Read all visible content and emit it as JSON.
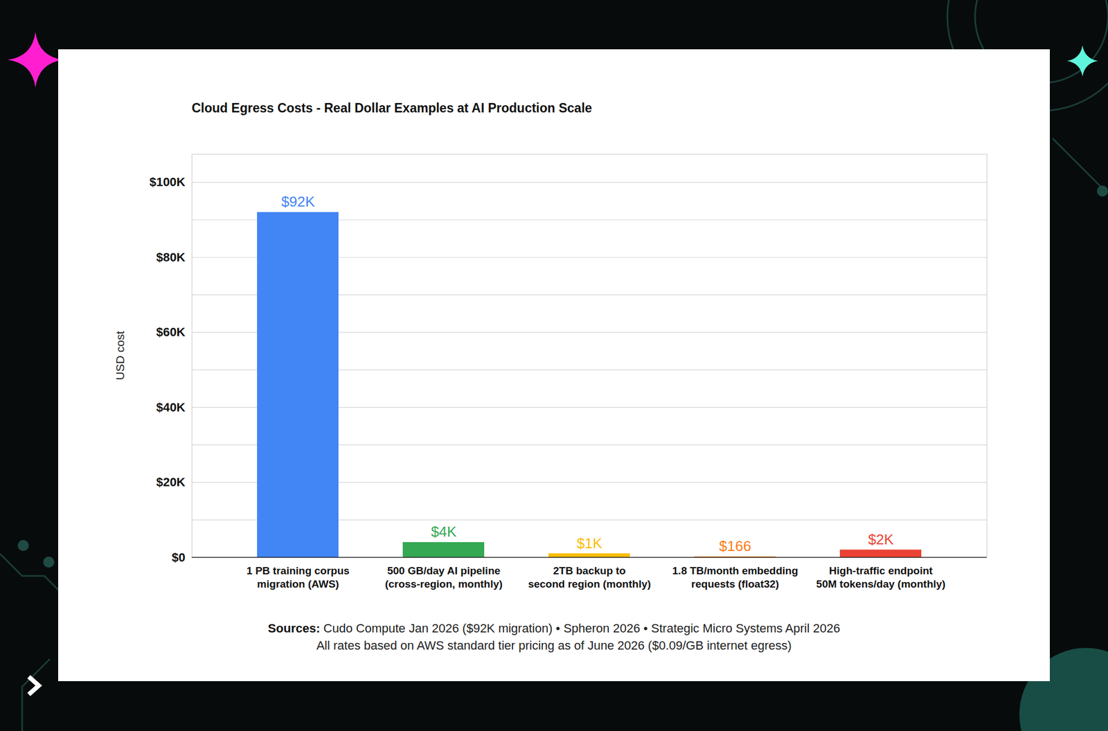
{
  "chart_data": {
    "type": "bar",
    "title": "Cloud Egress Costs - Real Dollar Examples at AI Production Scale",
    "y_label": "USD cost",
    "categories": [
      "1 PB training corpus\nmigration (AWS)",
      "500 GB/day AI pipeline\n(cross-region, monthly)",
      "2TB backup to\nsecond region (monthly)",
      "1.8 TB/month embedding\nrequests (float32)",
      "High-traffic endpoint\n50M tokens/day (monthly)"
    ],
    "values": [
      92000,
      4000,
      1000,
      166,
      2000
    ],
    "value_labels": [
      "$92K",
      "$4K",
      "$1K",
      "$166",
      "$2K"
    ],
    "colors": [
      "#4285f4",
      "#34a853",
      "#fbbc04",
      "#fa7b17",
      "#ea4335"
    ],
    "ylim": [
      0,
      107500
    ],
    "yticks": [
      {
        "value": 0,
        "label": "$0"
      },
      {
        "value": 20000,
        "label": "$20K"
      },
      {
        "value": 40000,
        "label": "$40K"
      },
      {
        "value": 60000,
        "label": "$60K"
      },
      {
        "value": 80000,
        "label": "$80K"
      },
      {
        "value": 100000,
        "label": "$100K"
      }
    ],
    "grid": true,
    "data_labels": true,
    "source_label": "Sources:",
    "source": "Cudo Compute Jan 2026 ($92K migration) • Spheron 2026 • Strategic Micro Systems April 2026",
    "note": "All rates based on AWS standard tier pricing as of June 2026 ($0.09/GB internet egress)"
  }
}
